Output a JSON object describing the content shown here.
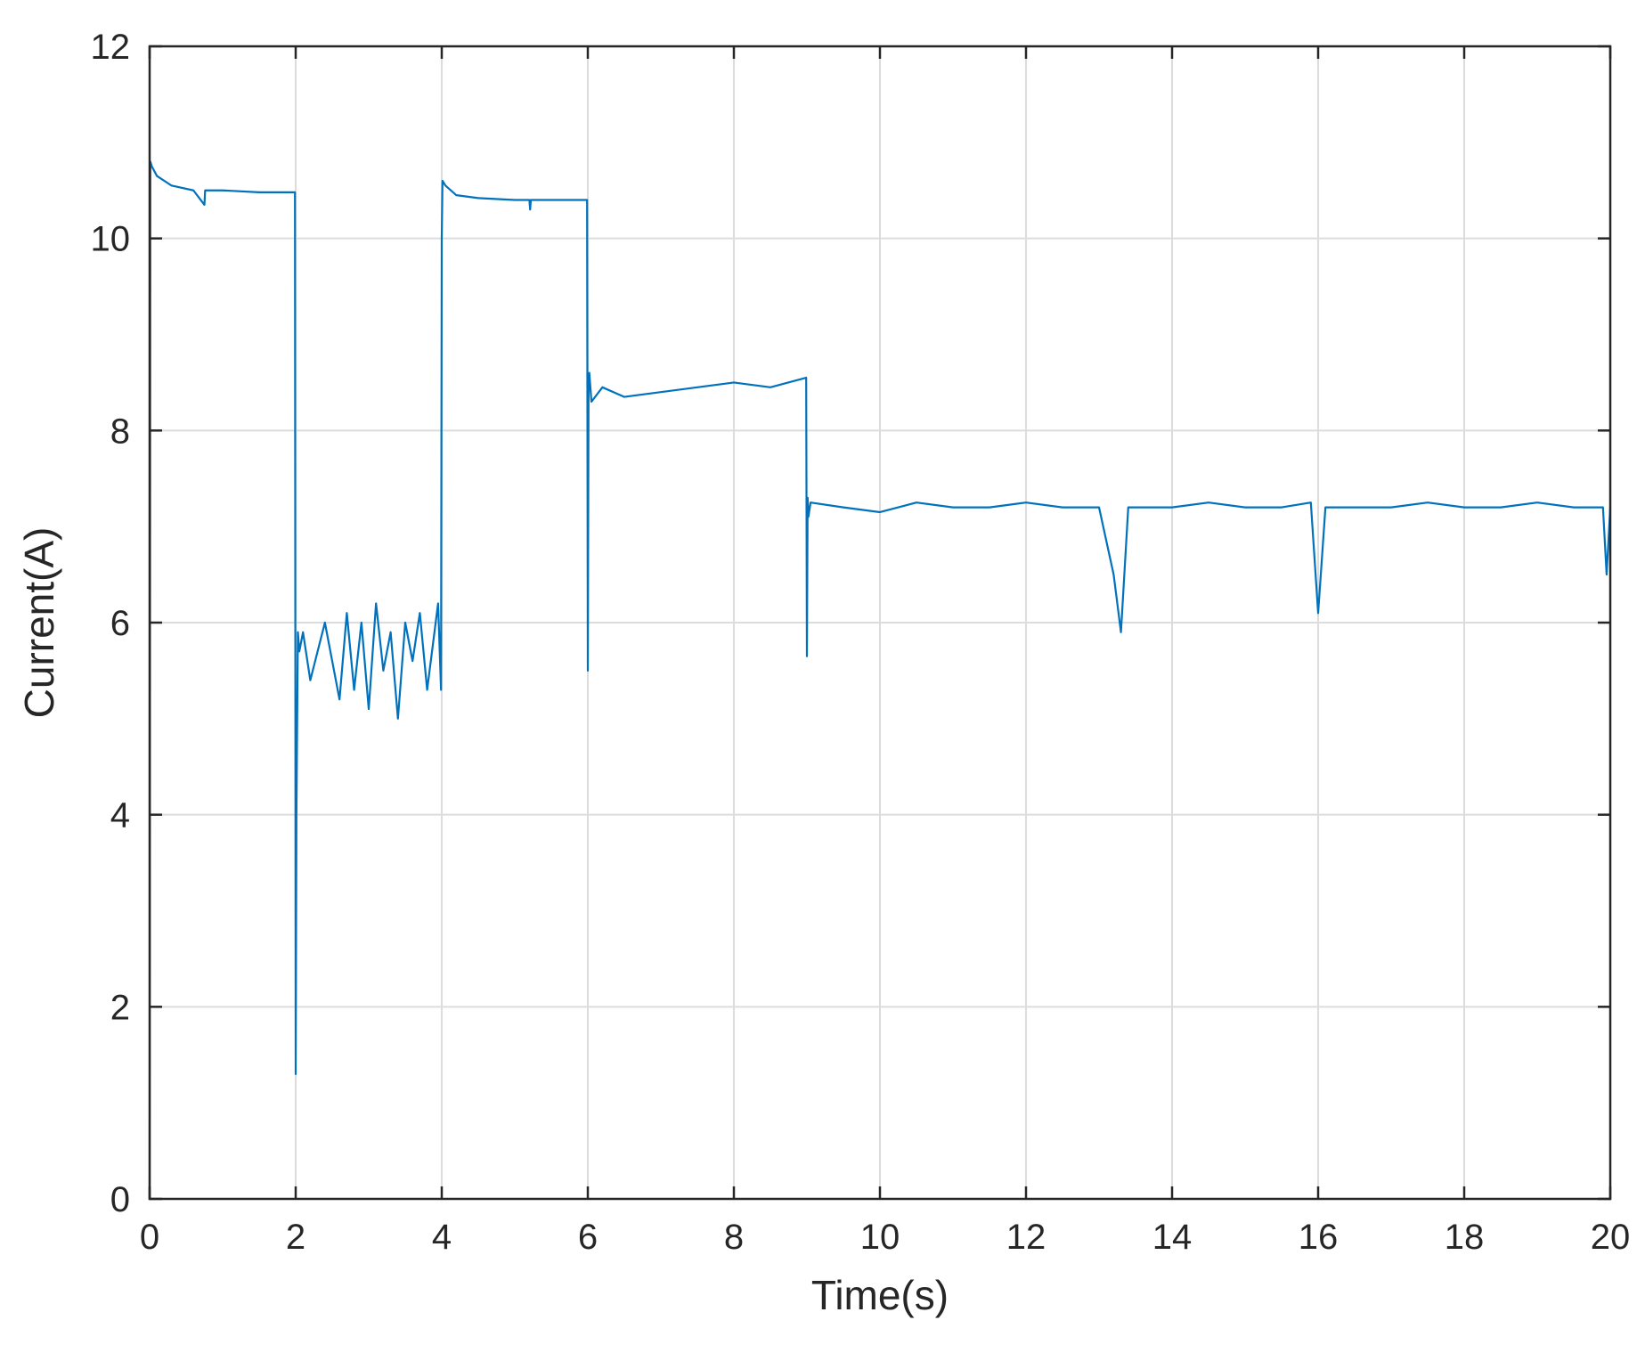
{
  "chart_data": {
    "type": "line",
    "title": "",
    "xlabel": "Time(s)",
    "ylabel": "Current(A)",
    "xlim": [
      0,
      20
    ],
    "ylim": [
      0,
      12
    ],
    "xticks": [
      0,
      2,
      4,
      6,
      8,
      10,
      12,
      14,
      16,
      18,
      20
    ],
    "yticks": [
      0,
      2,
      4,
      6,
      8,
      10,
      12
    ],
    "grid": true,
    "line_color": "#0072BD",
    "series": [
      {
        "x": [
          0,
          0.01,
          0.03,
          0.1,
          0.3,
          0.6,
          0.75,
          0.76,
          0.77,
          1.0,
          1.5,
          1.99,
          2.0,
          2.01,
          2.03,
          2.05,
          2.1,
          2.2,
          2.4,
          2.6,
          2.7,
          2.8,
          2.9,
          3.0,
          3.1,
          3.2,
          3.3,
          3.4,
          3.5,
          3.6,
          3.7,
          3.8,
          3.95,
          3.99,
          4.0,
          4.01,
          4.05,
          4.2,
          4.5,
          5.0,
          5.2,
          5.21,
          5.22,
          5.5,
          5.99,
          6.0,
          6.01,
          6.02,
          6.05,
          6.2,
          6.5,
          7.0,
          7.5,
          8.0,
          8.5,
          8.99,
          9.0,
          9.01,
          9.02,
          9.05,
          9.5,
          10.0,
          10.5,
          11.0,
          11.5,
          12.0,
          12.5,
          13.0,
          13.2,
          13.3,
          13.4,
          14.0,
          14.5,
          15.0,
          15.5,
          15.9,
          16.0,
          16.1,
          16.5,
          17.0,
          17.5,
          18.0,
          18.5,
          19.0,
          19.5,
          19.9,
          19.95,
          20.0
        ],
        "y": [
          0,
          10.8,
          10.75,
          10.65,
          10.55,
          10.5,
          10.35,
          10.5,
          10.5,
          10.5,
          10.48,
          10.48,
          1.3,
          4.0,
          5.9,
          5.7,
          5.9,
          5.4,
          6.0,
          5.2,
          6.1,
          5.3,
          6.0,
          5.1,
          6.2,
          5.5,
          5.9,
          5.0,
          6.0,
          5.6,
          6.1,
          5.3,
          6.2,
          5.3,
          10.0,
          10.6,
          10.55,
          10.45,
          10.42,
          10.4,
          10.4,
          10.3,
          10.4,
          10.4,
          10.4,
          5.5,
          8.4,
          8.6,
          8.3,
          8.45,
          8.35,
          8.4,
          8.45,
          8.5,
          8.45,
          8.55,
          5.65,
          7.3,
          7.1,
          7.25,
          7.2,
          7.15,
          7.25,
          7.2,
          7.2,
          7.25,
          7.2,
          7.2,
          6.5,
          5.9,
          7.2,
          7.2,
          7.25,
          7.2,
          7.2,
          7.25,
          6.1,
          7.2,
          7.2,
          7.2,
          7.25,
          7.2,
          7.2,
          7.25,
          7.2,
          7.2,
          6.5,
          7.2
        ]
      }
    ]
  }
}
